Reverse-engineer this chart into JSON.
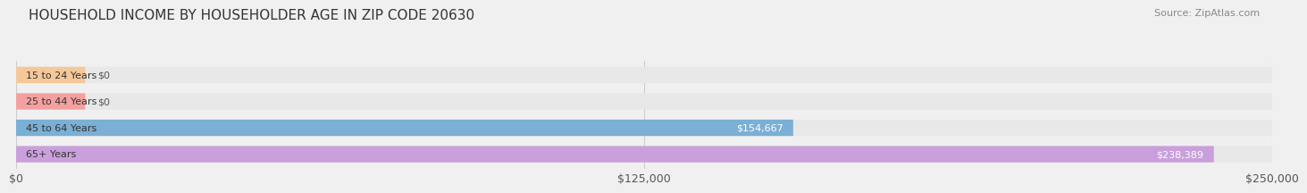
{
  "title": "HOUSEHOLD INCOME BY HOUSEHOLDER AGE IN ZIP CODE 20630",
  "source": "Source: ZipAtlas.com",
  "categories": [
    "15 to 24 Years",
    "25 to 44 Years",
    "45 to 64 Years",
    "65+ Years"
  ],
  "values": [
    0,
    0,
    154667,
    238389
  ],
  "bar_colors": [
    "#f5c89a",
    "#f5a0a0",
    "#7bafd4",
    "#c9a0dc"
  ],
  "label_colors": [
    "#888888",
    "#888888",
    "#ffffff",
    "#ffffff"
  ],
  "value_labels": [
    "$0",
    "$0",
    "$154,667",
    "$238,389"
  ],
  "xlim": [
    0,
    250000
  ],
  "xticks": [
    0,
    125000,
    250000
  ],
  "xtick_labels": [
    "$0",
    "$125,000",
    "$250,000"
  ],
  "background_color": "#f0f0f0",
  "bar_background_color": "#e8e8e8",
  "title_fontsize": 11,
  "source_fontsize": 8,
  "tick_fontsize": 9,
  "bar_label_fontsize": 8,
  "category_fontsize": 8
}
